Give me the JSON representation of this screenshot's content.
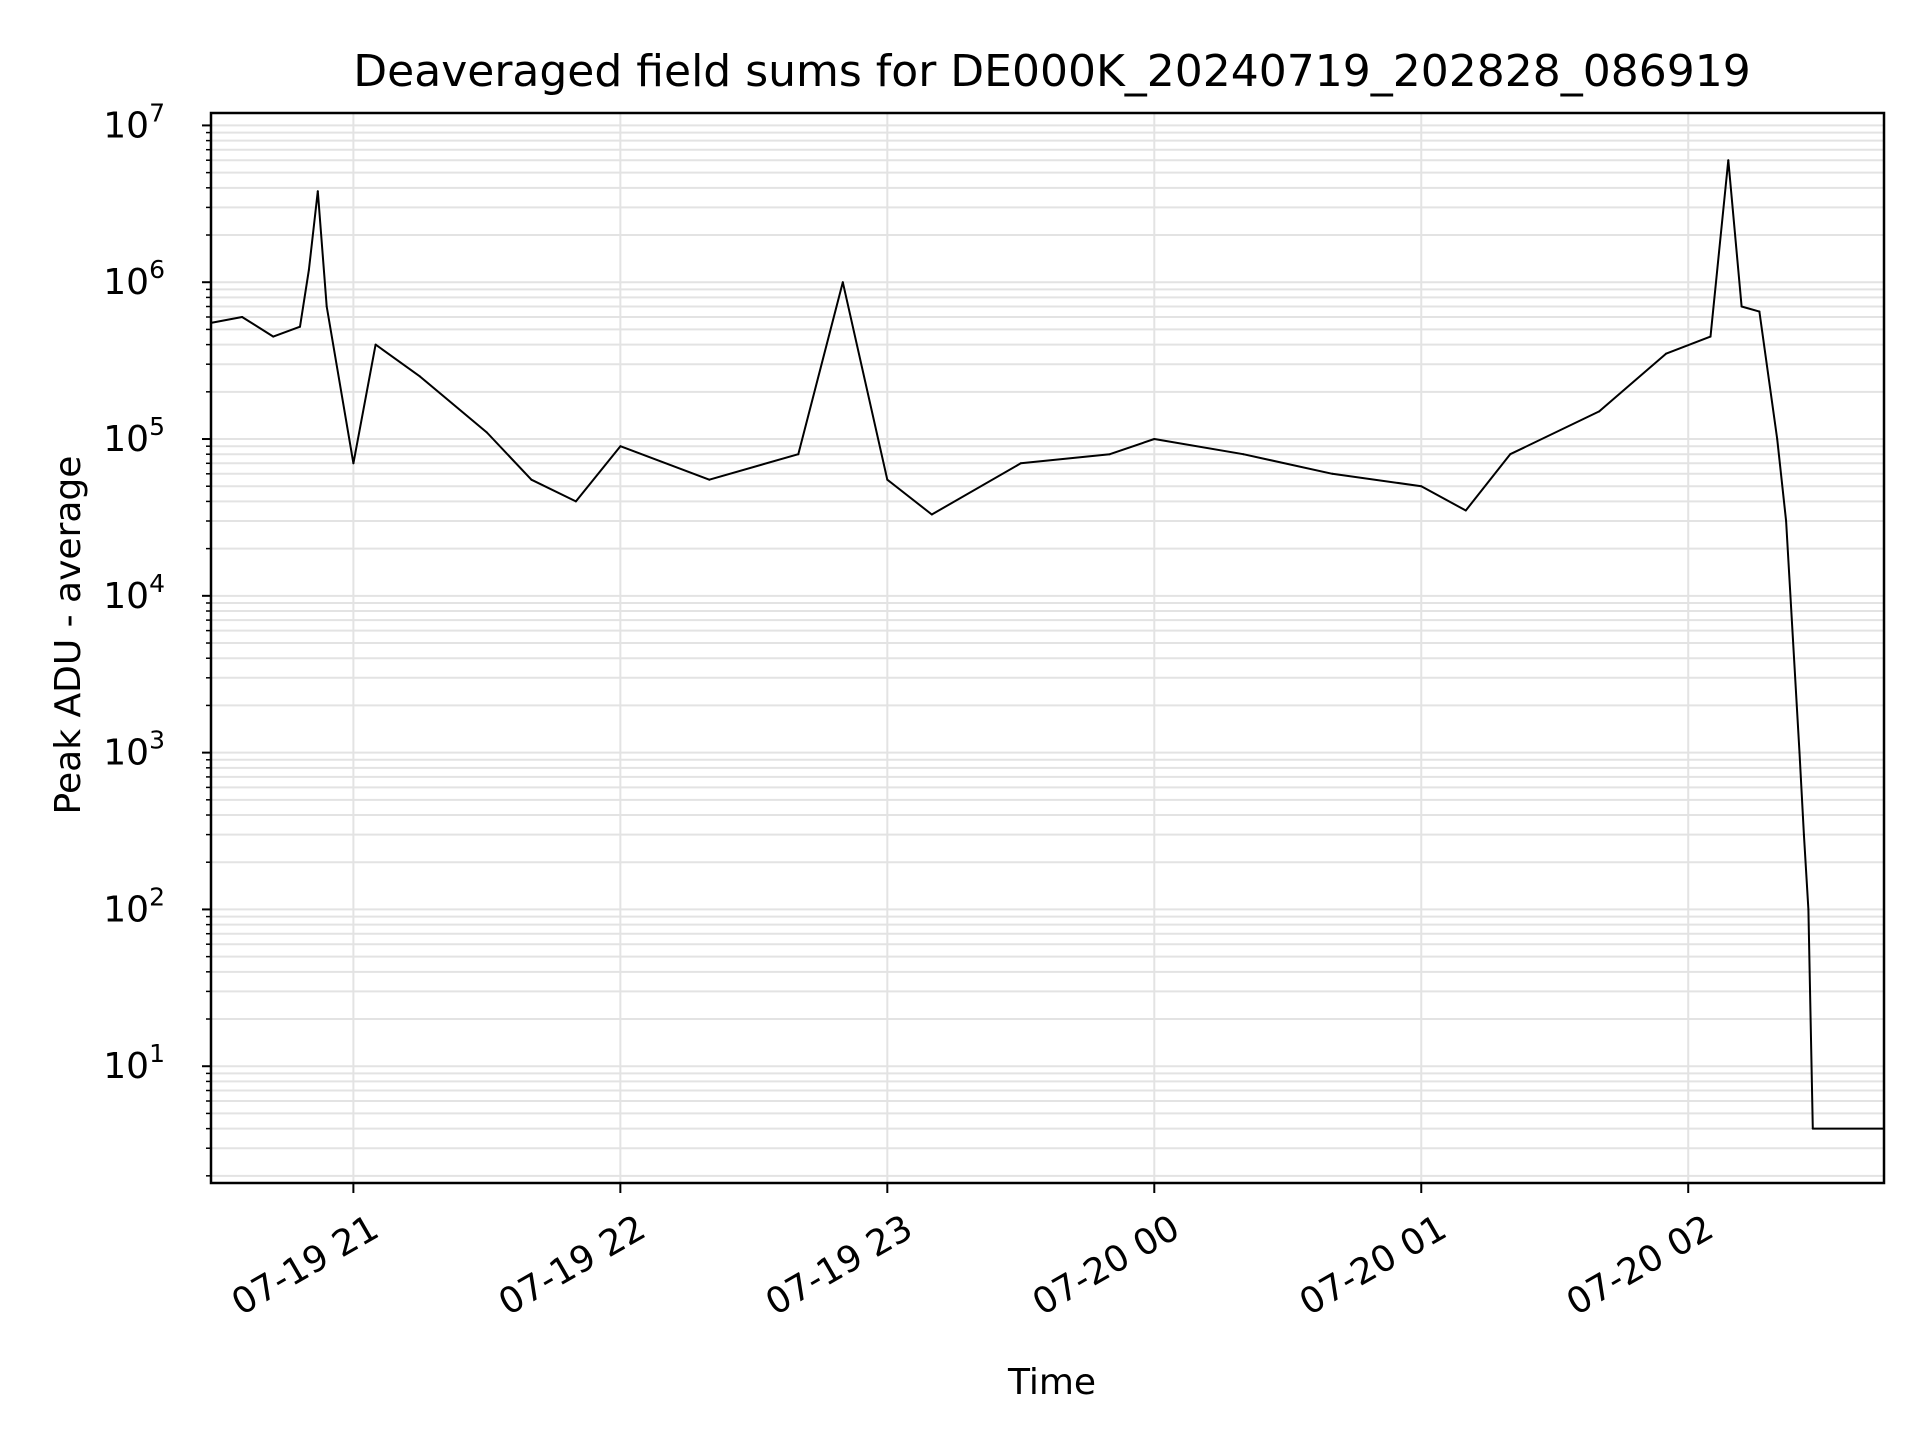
{
  "chart_data": {
    "type": "line",
    "title": "Deaveraged field sums for DE000K_20240719_202828_086919",
    "xlabel": "Time",
    "ylabel": "Peak ADU - average",
    "y_scale": "log",
    "grid": true,
    "line_color": "#000000",
    "grid_color": "#e3e3e3",
    "x_range": [
      "2024-07-19 20:28",
      "2024-07-20 02:44"
    ],
    "ylim": [
      1.8,
      12000000
    ],
    "x_ticks": [
      {
        "time": "2024-07-19 21:00",
        "label": "07-19 21"
      },
      {
        "time": "2024-07-19 22:00",
        "label": "07-19 22"
      },
      {
        "time": "2024-07-19 23:00",
        "label": "07-19 23"
      },
      {
        "time": "2024-07-20 00:00",
        "label": "07-20 00"
      },
      {
        "time": "2024-07-20 01:00",
        "label": "07-20 01"
      },
      {
        "time": "2024-07-20 02:00",
        "label": "07-20 02"
      }
    ],
    "y_ticks": [
      {
        "value": 10,
        "base": "10",
        "exp": "1"
      },
      {
        "value": 100,
        "base": "10",
        "exp": "2"
      },
      {
        "value": 1000,
        "base": "10",
        "exp": "3"
      },
      {
        "value": 10000,
        "base": "10",
        "exp": "4"
      },
      {
        "value": 100000,
        "base": "10",
        "exp": "5"
      },
      {
        "value": 1000000,
        "base": "10",
        "exp": "6"
      },
      {
        "value": 10000000,
        "base": "10",
        "exp": "7"
      }
    ],
    "series": [
      {
        "points": [
          [
            "2024-07-19 20:28",
            550000
          ],
          [
            "2024-07-19 20:35",
            600000
          ],
          [
            "2024-07-19 20:42",
            450000
          ],
          [
            "2024-07-19 20:48",
            520000
          ],
          [
            "2024-07-19 20:50",
            1200000
          ],
          [
            "2024-07-19 20:52",
            3800000
          ],
          [
            "2024-07-19 20:54",
            700000
          ],
          [
            "2024-07-19 21:00",
            70000
          ],
          [
            "2024-07-19 21:05",
            400000
          ],
          [
            "2024-07-19 21:15",
            250000
          ],
          [
            "2024-07-19 21:30",
            110000
          ],
          [
            "2024-07-19 21:40",
            55000
          ],
          [
            "2024-07-19 21:50",
            40000
          ],
          [
            "2024-07-19 22:00",
            90000
          ],
          [
            "2024-07-19 22:20",
            55000
          ],
          [
            "2024-07-19 22:40",
            80000
          ],
          [
            "2024-07-19 22:50",
            1000000
          ],
          [
            "2024-07-19 23:00",
            55000
          ],
          [
            "2024-07-19 23:10",
            33000
          ],
          [
            "2024-07-19 23:30",
            70000
          ],
          [
            "2024-07-19 23:50",
            80000
          ],
          [
            "2024-07-20 00:00",
            100000
          ],
          [
            "2024-07-20 00:20",
            80000
          ],
          [
            "2024-07-20 00:40",
            60000
          ],
          [
            "2024-07-20 01:00",
            50000
          ],
          [
            "2024-07-20 01:10",
            35000
          ],
          [
            "2024-07-20 01:20",
            80000
          ],
          [
            "2024-07-20 01:40",
            150000
          ],
          [
            "2024-07-20 01:55",
            350000
          ],
          [
            "2024-07-20 02:05",
            450000
          ],
          [
            "2024-07-20 02:09",
            6000000
          ],
          [
            "2024-07-20 02:12",
            700000
          ],
          [
            "2024-07-20 02:16",
            650000
          ],
          [
            "2024-07-20 02:20",
            100000
          ],
          [
            "2024-07-20 02:22",
            30000
          ],
          [
            "2024-07-20 02:25",
            1000
          ],
          [
            "2024-07-20 02:26",
            300
          ],
          [
            "2024-07-20 02:27",
            100
          ],
          [
            "2024-07-20 02:28",
            4
          ],
          [
            "2024-07-20 02:44",
            4
          ]
        ]
      }
    ]
  }
}
